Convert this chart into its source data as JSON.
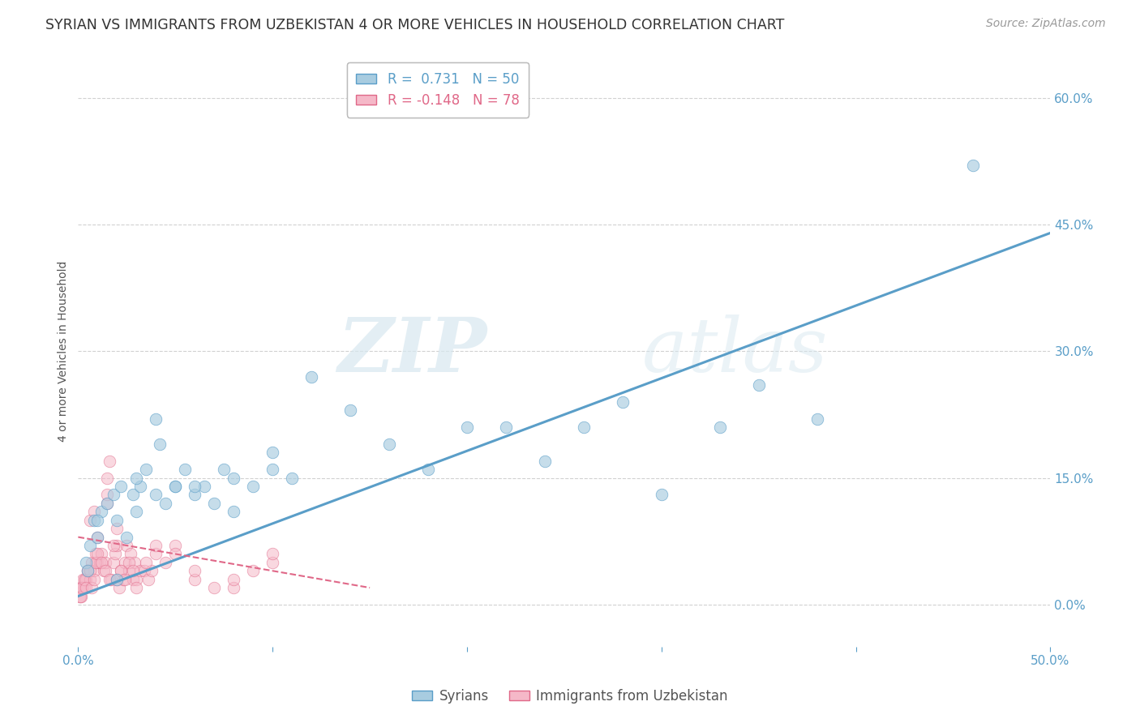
{
  "title": "SYRIAN VS IMMIGRANTS FROM UZBEKISTAN 4 OR MORE VEHICLES IN HOUSEHOLD CORRELATION CHART",
  "source": "Source: ZipAtlas.com",
  "ylabel": "4 or more Vehicles in Household",
  "xlabel_ticks": [
    "0.0%",
    "",
    "",
    "",
    "",
    "50.0%"
  ],
  "xlabel_vals": [
    0,
    10,
    20,
    30,
    40,
    50
  ],
  "ylabel_ticks_right": [
    "60.0%",
    "45.0%",
    "30.0%",
    "15.0%",
    "0.0%"
  ],
  "ylabel_vals": [
    60,
    45,
    30,
    15,
    0
  ],
  "xmin": 0,
  "xmax": 50,
  "ymin": -5,
  "ymax": 65,
  "legend1_label": "Syrians",
  "legend2_label": "Immigrants from Uzbekistan",
  "R1": 0.731,
  "N1": 50,
  "R2": -0.148,
  "N2": 78,
  "color_blue": "#a8cce0",
  "color_pink": "#f5b8c8",
  "color_blue_dark": "#5a9ec8",
  "color_pink_dark": "#e06888",
  "color_line_blue": "#5a9ec8",
  "color_line_pink": "#e06888",
  "color_axis_right": "#5a9ec8",
  "color_axis_bottom": "#5a9ec8",
  "watermark_zip": "ZIP",
  "watermark_atlas": "atlas",
  "blue_points_x": [
    0.4,
    0.6,
    0.8,
    1.0,
    1.2,
    1.5,
    1.8,
    2.0,
    2.2,
    2.5,
    2.8,
    3.0,
    3.2,
    3.5,
    4.0,
    4.2,
    4.5,
    5.0,
    5.5,
    6.0,
    6.5,
    7.0,
    7.5,
    8.0,
    9.0,
    10.0,
    11.0,
    12.0,
    14.0,
    16.0,
    18.0,
    20.0,
    22.0,
    24.0,
    26.0,
    28.0,
    30.0,
    33.0,
    35.0,
    38.0,
    0.5,
    1.0,
    2.0,
    3.0,
    4.0,
    5.0,
    6.0,
    8.0,
    10.0,
    46.0
  ],
  "blue_points_y": [
    5,
    7,
    10,
    8,
    11,
    12,
    13,
    10,
    14,
    8,
    13,
    11,
    14,
    16,
    13,
    19,
    12,
    14,
    16,
    13,
    14,
    12,
    16,
    15,
    14,
    16,
    15,
    27,
    23,
    19,
    16,
    21,
    21,
    17,
    21,
    24,
    13,
    21,
    26,
    22,
    4,
    10,
    3,
    15,
    22,
    14,
    14,
    11,
    18,
    52
  ],
  "pink_points_x": [
    0.05,
    0.1,
    0.15,
    0.2,
    0.25,
    0.3,
    0.35,
    0.4,
    0.5,
    0.6,
    0.7,
    0.8,
    0.9,
    1.0,
    1.1,
    1.2,
    1.3,
    1.4,
    1.5,
    1.6,
    1.7,
    1.8,
    1.9,
    2.0,
    2.1,
    2.2,
    2.3,
    2.4,
    2.5,
    2.6,
    2.7,
    2.8,
    2.9,
    3.0,
    3.2,
    3.4,
    3.6,
    3.8,
    4.0,
    4.5,
    5.0,
    6.0,
    7.0,
    8.0,
    9.0,
    10.0,
    0.1,
    0.2,
    0.3,
    0.4,
    0.5,
    0.6,
    0.7,
    0.8,
    0.9,
    1.0,
    1.2,
    1.4,
    1.6,
    1.8,
    2.0,
    2.2,
    2.4,
    2.6,
    2.8,
    3.0,
    3.5,
    4.0,
    5.0,
    6.0,
    8.0,
    10.0,
    1.5,
    2.0,
    1.0,
    0.6,
    0.8,
    1.5
  ],
  "pink_points_y": [
    1,
    2,
    1,
    2,
    3,
    2,
    3,
    3,
    4,
    3,
    5,
    4,
    6,
    5,
    5,
    6,
    4,
    5,
    15,
    17,
    3,
    5,
    6,
    7,
    2,
    4,
    3,
    5,
    7,
    4,
    6,
    3,
    5,
    3,
    4,
    4,
    3,
    4,
    6,
    5,
    7,
    3,
    2,
    2,
    4,
    5,
    1,
    2,
    3,
    2,
    4,
    4,
    2,
    3,
    5,
    6,
    5,
    4,
    3,
    7,
    3,
    4,
    3,
    5,
    4,
    2,
    5,
    7,
    6,
    4,
    3,
    6,
    12,
    9,
    8,
    10,
    11,
    13
  ],
  "blue_line_x": [
    0,
    50
  ],
  "blue_line_y": [
    1,
    44
  ],
  "pink_line_x": [
    0,
    15
  ],
  "pink_line_y": [
    8,
    2
  ],
  "title_fontsize": 12.5,
  "source_fontsize": 10,
  "axis_label_fontsize": 10,
  "tick_fontsize": 11,
  "legend_fontsize": 12,
  "background_color": "#ffffff",
  "grid_color": "#cccccc"
}
